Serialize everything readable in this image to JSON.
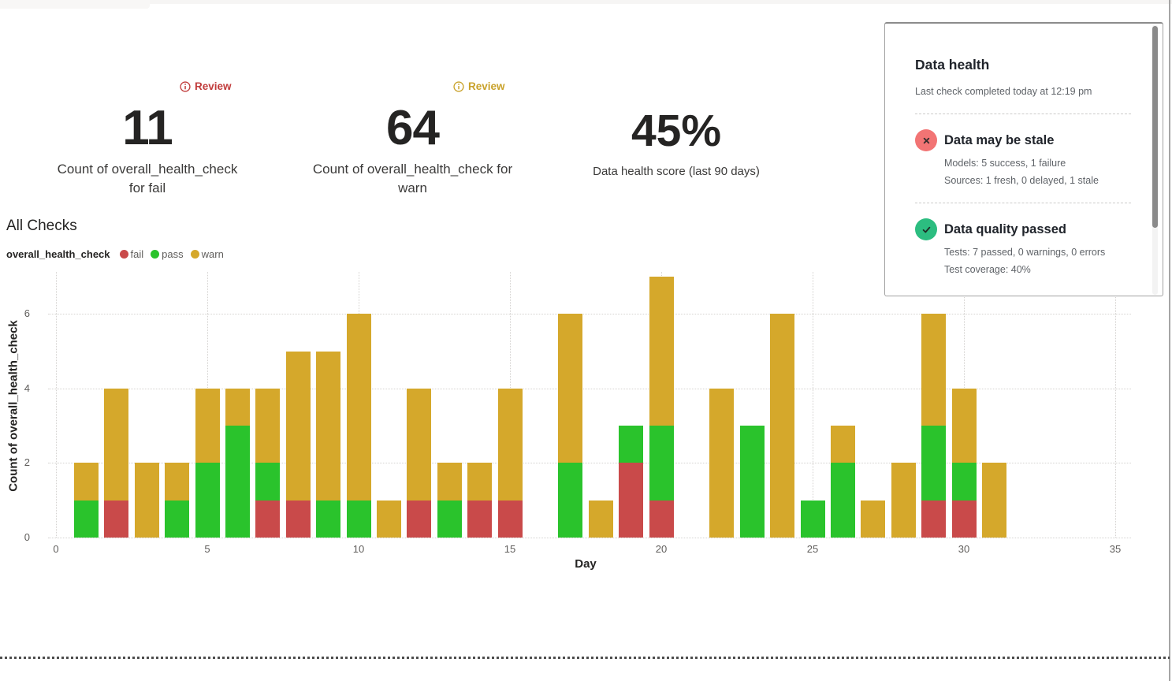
{
  "metrics": [
    {
      "review": "Review",
      "review_color": "#C13C3C",
      "value": "11",
      "label_line1": "Count of overall_health_check",
      "label_line2": "for fail"
    },
    {
      "review": "Review",
      "review_color": "#C9A22B",
      "value": "64",
      "label_line1": "Count of overall_health_check for",
      "label_line2": "warn"
    },
    {
      "value": "45%",
      "label_line1": "Data health score (last 90 days)"
    }
  ],
  "all_checks": {
    "title": "All Checks",
    "legend_series": "overall_health_check",
    "legend_items": [
      {
        "label": "fail",
        "color": "#C94A4A"
      },
      {
        "label": "pass",
        "color": "#2AC32C"
      },
      {
        "label": "warn",
        "color": "#D5A82B"
      }
    ]
  },
  "chart_data": {
    "type": "bar",
    "stacked": true,
    "title": "All Checks",
    "series_label": "overall_health_check",
    "xlabel": "Day",
    "ylabel": "Count of overall_health_check",
    "xlim": [
      0,
      35
    ],
    "ylim": [
      0,
      7
    ],
    "x_ticks": [
      0,
      5,
      10,
      15,
      20,
      25,
      30,
      35
    ],
    "y_ticks": [
      0,
      2,
      4,
      6
    ],
    "grid": "dotted",
    "legend_position": "top",
    "categories": [
      1,
      2,
      3,
      4,
      5,
      6,
      7,
      8,
      9,
      10,
      11,
      12,
      13,
      14,
      15,
      16,
      17,
      18,
      19,
      20,
      21,
      22,
      23,
      24,
      25,
      26,
      27,
      28,
      29,
      30,
      31
    ],
    "series": [
      {
        "name": "fail",
        "color": "#C94A4A",
        "values": [
          0,
          1,
          0,
          0,
          0,
          0,
          1,
          1,
          0,
          0,
          0,
          1,
          0,
          1,
          1,
          0,
          0,
          0,
          2,
          1,
          0,
          0,
          0,
          0,
          0,
          0,
          0,
          0,
          1,
          1,
          0
        ]
      },
      {
        "name": "pass",
        "color": "#2AC32C",
        "values": [
          1,
          0,
          0,
          1,
          2,
          3,
          1,
          0,
          1,
          1,
          0,
          0,
          1,
          0,
          0,
          0,
          2,
          0,
          1,
          2,
          0,
          0,
          3,
          0,
          1,
          2,
          0,
          0,
          2,
          1,
          0
        ]
      },
      {
        "name": "warn",
        "color": "#D5A82B",
        "values": [
          1,
          3,
          2,
          1,
          2,
          1,
          2,
          4,
          4,
          5,
          1,
          3,
          1,
          1,
          3,
          0,
          4,
          1,
          0,
          4,
          0,
          4,
          0,
          6,
          0,
          1,
          1,
          2,
          3,
          2,
          2
        ]
      }
    ]
  },
  "data_health": {
    "title": "Data health",
    "subtitle": "Last check completed today at 12:19 pm",
    "sections": [
      {
        "icon": "x-circle-icon",
        "icon_color": "#F27474",
        "heading": "Data may be stale",
        "line1": "Models: 5 success, 1 failure",
        "line2": "Sources: 1 fresh, 0 delayed, 1 stale"
      },
      {
        "icon": "check-circle-icon",
        "icon_color": "#2CBD80",
        "heading": "Data quality passed",
        "line1": "Tests: 7 passed, 0 warnings, 0 errors",
        "line2": "Test coverage: 40%"
      }
    ]
  }
}
